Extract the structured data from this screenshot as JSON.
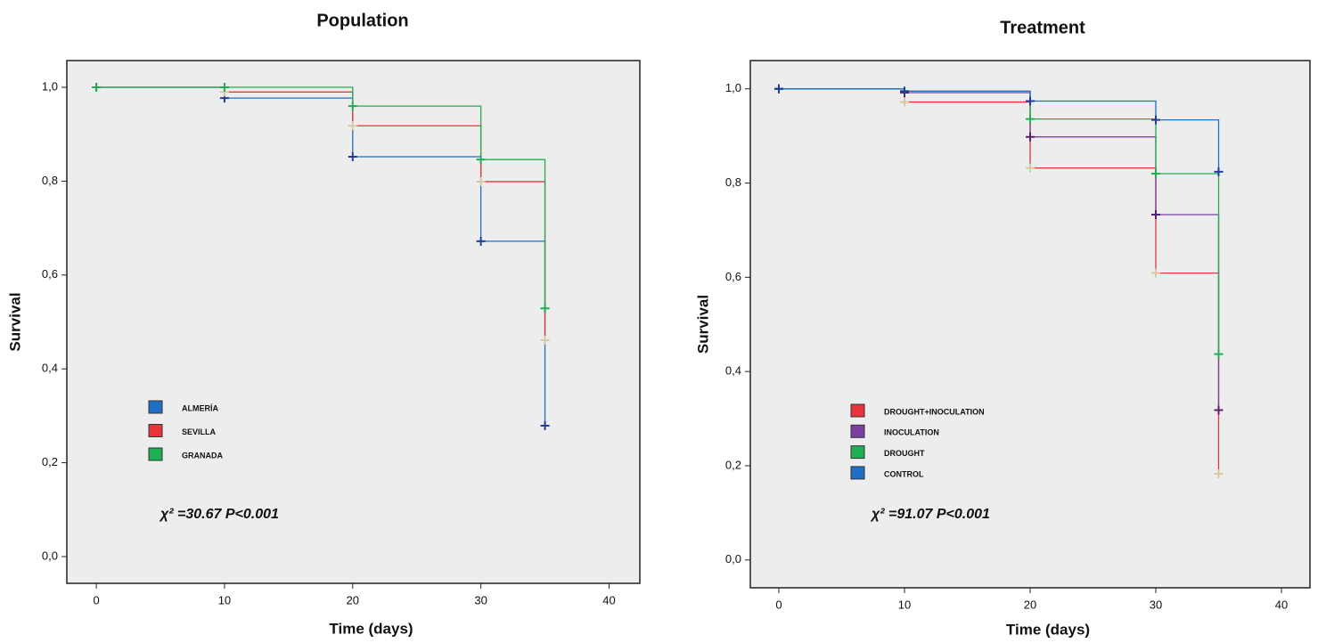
{
  "chart_data": [
    {
      "type": "line",
      "drawstyle": "steps-post",
      "title": "Population",
      "xlabel": "Time (days)",
      "ylabel": "Survival",
      "annotation": "χ² =30.67  P<0.001",
      "xlim": [
        -2.3,
        42.4
      ],
      "xticks": [
        0,
        10,
        20,
        30,
        40
      ],
      "ylim": [
        -0.057,
        1.057
      ],
      "yticks": [
        {
          "value": 0,
          "label": "0,0"
        },
        {
          "value": 0.2,
          "label": "0,2"
        },
        {
          "value": 0.4,
          "label": "0,4"
        },
        {
          "value": 0.6,
          "label": "0,6"
        },
        {
          "value": 0.8,
          "label": "0,8"
        },
        {
          "value": 1,
          "label": "1,0"
        }
      ],
      "series": [
        {
          "name": "ALMERÍA",
          "color": "#1f6fc5",
          "marker_color": "#1f3f99",
          "x": [
            0,
            10,
            20,
            30,
            35
          ],
          "values": [
            1.0,
            0.977,
            0.852,
            0.672,
            0.279
          ]
        },
        {
          "name": "SEVILLA",
          "color": "#e8343a",
          "marker_color": "#d8c9a0",
          "x": [
            0,
            10,
            20,
            30,
            35
          ],
          "values": [
            1.0,
            0.99,
            0.918,
            0.799,
            0.461
          ]
        },
        {
          "name": "GRANADA",
          "color": "#1fae54",
          "marker_color": "#1fae54",
          "x": [
            0,
            10,
            20,
            30,
            35
          ],
          "values": [
            1.0,
            1.0,
            0.96,
            0.846,
            0.529
          ]
        }
      ]
    },
    {
      "type": "line",
      "drawstyle": "steps-post",
      "title": "Treatment",
      "xlabel": "Time (days)",
      "ylabel": "Survival",
      "annotation": "χ² =91.07  P<0.001",
      "xlim": [
        -2.27,
        42.27
      ],
      "xticks": [
        0,
        10,
        20,
        30,
        40
      ],
      "ylim": [
        -0.059,
        1.06
      ],
      "yticks": [
        {
          "value": 0,
          "label": "0,0"
        },
        {
          "value": 0.2,
          "label": "0,2"
        },
        {
          "value": 0.4,
          "label": "0,4"
        },
        {
          "value": 0.6,
          "label": "0,6"
        },
        {
          "value": 0.8,
          "label": "0,8"
        },
        {
          "value": 1,
          "label": "1,0"
        }
      ],
      "series": [
        {
          "name": "DROUGHT+INOCULATION",
          "color": "#e8343a",
          "marker_color": "#d8c9a0",
          "x": [
            0,
            10,
            20,
            30,
            35
          ],
          "values": [
            1.0,
            0.972,
            0.832,
            0.609,
            0.183
          ]
        },
        {
          "name": "INOCULATION",
          "color": "#7a3fa0",
          "marker_color": "#5a1f70",
          "x": [
            0,
            10,
            20,
            30,
            35
          ],
          "values": [
            1.0,
            0.992,
            0.898,
            0.733,
            0.318
          ]
        },
        {
          "name": "DROUGHT",
          "color": "#1fae54",
          "marker_color": "#1fae54",
          "x": [
            0,
            10,
            20,
            30,
            35
          ],
          "values": [
            1.0,
            0.995,
            0.936,
            0.82,
            0.437
          ]
        },
        {
          "name": "CONTROL",
          "color": "#1f6fc5",
          "marker_color": "#1f3f99",
          "x": [
            0,
            10,
            20,
            30,
            35
          ],
          "values": [
            1.0,
            0.995,
            0.974,
            0.934,
            0.824
          ]
        }
      ]
    }
  ]
}
